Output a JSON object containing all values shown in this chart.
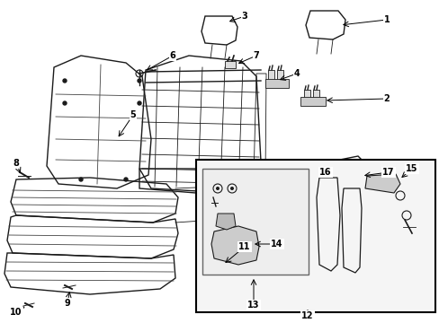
{
  "figsize": [
    4.89,
    3.6
  ],
  "dpi": 100,
  "background_color": "#ffffff",
  "image_b64": ""
}
